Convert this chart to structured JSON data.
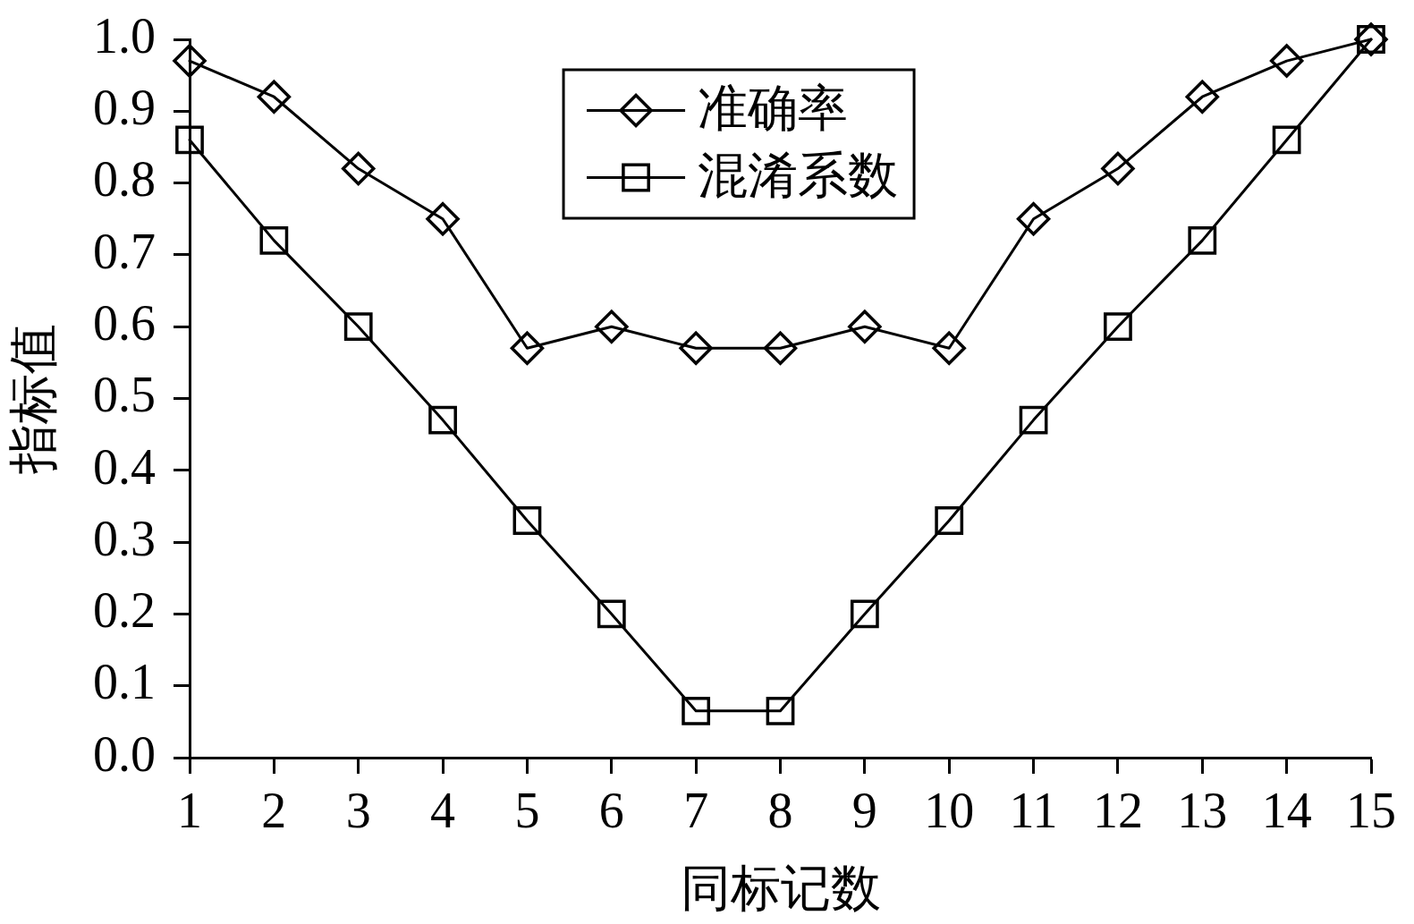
{
  "chart_data": {
    "type": "line",
    "xlabel": "同标记数",
    "ylabel": "指标值",
    "x": [
      1,
      2,
      3,
      4,
      5,
      6,
      7,
      8,
      9,
      10,
      11,
      12,
      13,
      14,
      15
    ],
    "xlim": [
      1,
      15
    ],
    "xticks": [
      1,
      2,
      3,
      4,
      5,
      6,
      7,
      8,
      9,
      10,
      11,
      12,
      13,
      14,
      15
    ],
    "ylim": [
      0,
      1
    ],
    "yticks": [
      {
        "value": 0,
        "label": "0.0"
      },
      0.1,
      0.2,
      0.3,
      0.4,
      0.5,
      0.6,
      0.7,
      0.8,
      0.9,
      {
        "value": 1,
        "label": "1.0"
      }
    ],
    "series": [
      {
        "name": "准确率",
        "color": "#000000",
        "marker": "diamond",
        "values": [
          0.97,
          0.92,
          0.82,
          0.75,
          0.57,
          0.6,
          0.57,
          0.57,
          0.6,
          0.57,
          0.75,
          0.82,
          0.92,
          0.97,
          1.0
        ]
      },
      {
        "name": "混淆系数",
        "color": "#000000",
        "marker": "square",
        "values": [
          0.86,
          0.72,
          0.6,
          0.47,
          0.33,
          0.2,
          0.065,
          0.065,
          0.2,
          0.33,
          0.47,
          0.6,
          0.72,
          0.86,
          1.0
        ]
      }
    ],
    "legend": "top",
    "line_style": "solid"
  }
}
